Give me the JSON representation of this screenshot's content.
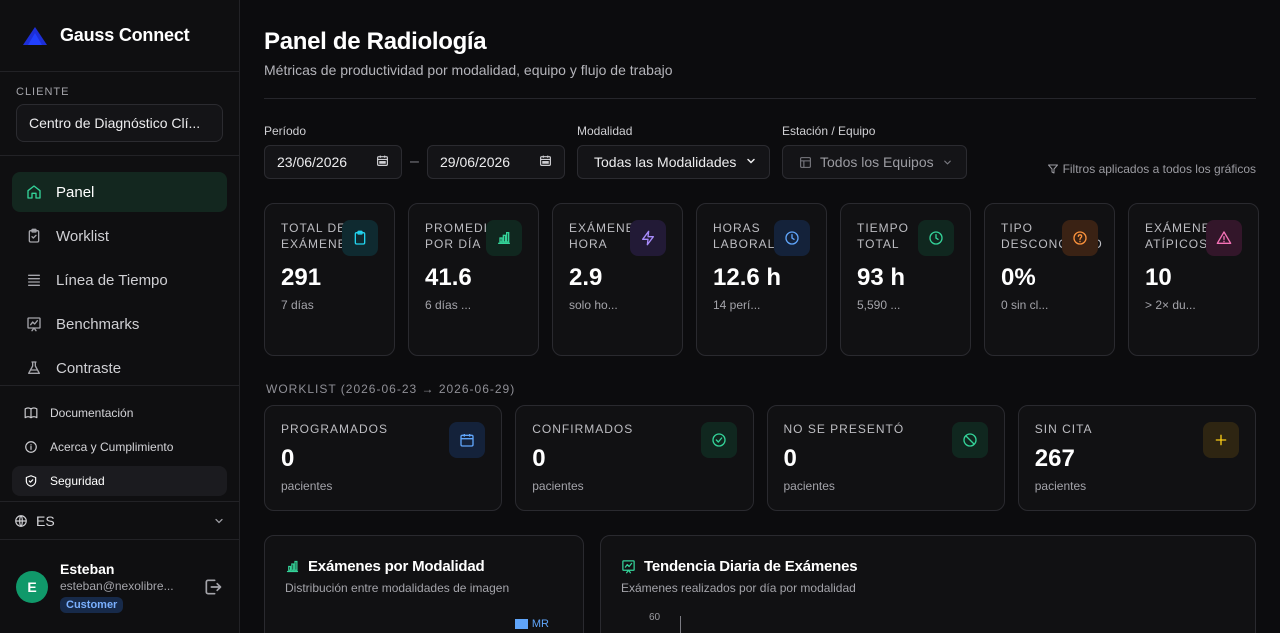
{
  "brand": {
    "name": "Gauss Connect"
  },
  "client": {
    "label": "CLIENTE",
    "value": "Centro de Diagnóstico Clí..."
  },
  "nav": {
    "items": [
      {
        "label": "Panel",
        "icon": "home-icon"
      },
      {
        "label": "Worklist",
        "icon": "clipboard-icon"
      },
      {
        "label": "Línea de Tiempo",
        "icon": "timeline-icon"
      },
      {
        "label": "Benchmarks",
        "icon": "chart-icon"
      },
      {
        "label": "Contraste",
        "icon": "flask-icon"
      }
    ]
  },
  "secondary": {
    "items": [
      {
        "label": "Documentación",
        "icon": "book-icon"
      },
      {
        "label": "Acerca y Cumplimiento",
        "icon": "info-icon"
      },
      {
        "label": "Seguridad",
        "icon": "shield-icon"
      }
    ]
  },
  "language": {
    "value": "ES"
  },
  "user": {
    "initial": "E",
    "name": "Esteban",
    "email": "esteban@nexolibre...",
    "role": "Customer"
  },
  "header": {
    "title": "Panel de Radiología",
    "subtitle": "Métricas de productividad por modalidad, equipo y flujo de trabajo"
  },
  "filters": {
    "period_label": "Período",
    "date_from": "23/06/2026",
    "date_to": "29/06/2026",
    "date_sep": "–",
    "modality_label": "Modalidad",
    "modality_value": "Todas las Modalidades",
    "station_label": "Estación / Equipo",
    "station_value": "Todos los Equipos",
    "note": "Filtros aplicados a todos los gráficos"
  },
  "kpis": [
    {
      "label": "TOTAL DE EXÁMENES",
      "value": "291",
      "sub": "7 días",
      "icon": "clipboard-icon",
      "color": "#22d3ee",
      "bg": "#0f2a30"
    },
    {
      "label": "PROMEDIO POR DÍA",
      "value": "41.6",
      "sub": "6 días ...",
      "icon": "bar-chart-icon",
      "color": "#34d399",
      "bg": "#10271f"
    },
    {
      "label": "EXÁMENES / HORA",
      "value": "2.9",
      "sub": "solo ho...",
      "icon": "lightning-icon",
      "color": "#a78bfa",
      "bg": "#221a36"
    },
    {
      "label": "HORAS LABORALES",
      "value": "12.6 h",
      "sub": "14 perí...",
      "icon": "clock-icon",
      "color": "#60a5fa",
      "bg": "#14223a"
    },
    {
      "label": "TIEMPO TOTAL",
      "value": "93 h",
      "sub": "5,590 ...",
      "icon": "clock-icon",
      "color": "#34d399",
      "bg": "#10271f"
    },
    {
      "label": "TIPO DESCONOCIDO",
      "value": "0%",
      "sub": "0 sin cl...",
      "icon": "question-icon",
      "color": "#fb923c",
      "bg": "#3a2214"
    },
    {
      "label": "EXÁMENES ATÍPICOS",
      "value": "10",
      "sub": "> 2× du...",
      "icon": "warning-icon",
      "color": "#f472b6",
      "bg": "#33162a"
    }
  ],
  "worklist": {
    "title": "WORKLIST (2026-06-23 → 2026-06-29)",
    "cards": [
      {
        "label": "PROGRAMADOS",
        "value": "0",
        "sub": "pacientes",
        "icon": "calendar-icon",
        "color": "#60a5fa",
        "bg": "#14223a"
      },
      {
        "label": "CONFIRMADOS",
        "value": "0",
        "sub": "pacientes",
        "icon": "check-circle-icon",
        "color": "#34d399",
        "bg": "#10271f"
      },
      {
        "label": "NO SE PRESENTÓ",
        "value": "0",
        "sub": "pacientes",
        "icon": "ban-icon",
        "color": "#34d399",
        "bg": "#10271f"
      },
      {
        "label": "SIN CITA",
        "value": "267",
        "sub": "pacientes",
        "icon": "plus-icon",
        "color": "#facc15",
        "bg": "#2e2512"
      }
    ]
  },
  "charts": {
    "modality": {
      "title": "Exámenes por Modalidad",
      "subtitle": "Distribución entre modalidades de imagen",
      "legend": "MR"
    },
    "trend": {
      "title": "Tendencia Diaria de Exámenes",
      "subtitle": "Exámenes realizados por día por modalidad",
      "y_tick": "60"
    }
  }
}
